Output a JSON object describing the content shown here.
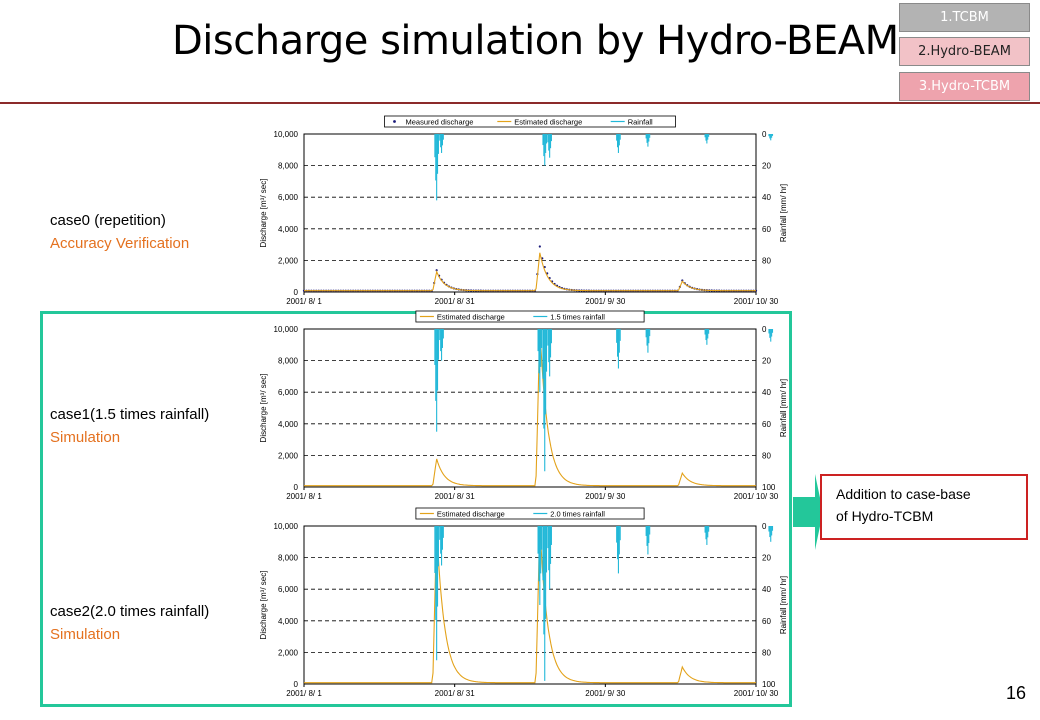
{
  "slide": {
    "title": "Discharge simulation by Hydro-BEAM",
    "page_number": "16",
    "accent_color": "#23c79a",
    "callout_border_color": "#cc2222",
    "callout_text": [
      "Addition to case-base",
      "of Hydro-TCBM"
    ]
  },
  "nav": {
    "items": [
      {
        "label": "1.TCBM",
        "state": "default"
      },
      {
        "label": "2.Hydro-BEAM",
        "state": "active"
      },
      {
        "label": "3.Hydro-TCBM",
        "state": "default"
      }
    ]
  },
  "captions": [
    {
      "line1": "case0 (repetition)",
      "line2": "Accuracy Verification"
    },
    {
      "line1": "case1(1.5 times rainfall)",
      "line2": "Simulation"
    },
    {
      "line1": "case2(2.0 times rainfall)",
      "line2": "Simulation"
    }
  ],
  "chart_data": [
    {
      "type": "line",
      "ylabel": "Discharge [m³/ sec]",
      "y2label": "Rainfall [mm/ hr]",
      "ylim": [
        0,
        10000
      ],
      "y2lim": [
        0,
        100
      ],
      "y2_inverted": true,
      "yticks": [
        "0",
        "2,000",
        "4,000",
        "6,000",
        "8,000",
        "10,000"
      ],
      "y2ticks": [
        "0",
        "20",
        "40",
        "60",
        "80"
      ],
      "xticks": [
        "2001/ 8/ 1",
        "2001/ 8/ 31",
        "2001/ 9/ 30",
        "2001/ 10/ 30"
      ],
      "grid": true,
      "legend_position": "top",
      "series": [
        {
          "name": "Measured discharge",
          "color": "#1a1a7a",
          "style": "markers",
          "peaks": [
            [
              27,
              1300
            ],
            [
              48,
              2800
            ],
            [
              77,
              650
            ]
          ]
        },
        {
          "name": "Estimated discharge",
          "color": "#e3a21a",
          "style": "line",
          "peaks": [
            [
              27,
              1200
            ],
            [
              48,
              2400
            ],
            [
              77,
              600
            ]
          ]
        },
        {
          "name": "Rainfall",
          "color": "#22b8d8",
          "style": "bars",
          "events": [
            [
              27,
              42
            ],
            [
              28,
              12
            ],
            [
              49,
              20
            ],
            [
              50,
              15
            ],
            [
              64,
              12
            ],
            [
              70,
              8
            ],
            [
              82,
              6
            ],
            [
              95,
              4
            ]
          ]
        }
      ]
    },
    {
      "type": "line",
      "ylabel": "Discharge [m³/ sec]",
      "y2label": "Rainfall [mm/ hr]",
      "ylim": [
        0,
        10000
      ],
      "y2lim": [
        0,
        100
      ],
      "y2_inverted": true,
      "yticks": [
        "0",
        "2,000",
        "4,000",
        "6,000",
        "8,000",
        "10,000"
      ],
      "y2ticks": [
        "0",
        "20",
        "40",
        "60",
        "80",
        "100"
      ],
      "xticks": [
        "2001/ 8/ 1",
        "2001/ 8/ 31",
        "2001/ 9/ 30",
        "2001/ 10/ 30"
      ],
      "grid": true,
      "legend_position": "top",
      "series": [
        {
          "name": "Estimated discharge",
          "color": "#e3a21a",
          "style": "line",
          "peaks": [
            [
              27,
              1700
            ],
            [
              48,
              10000
            ],
            [
              77,
              800
            ]
          ]
        },
        {
          "name": "1.5 times rainfall",
          "color": "#22b8d8",
          "style": "bars",
          "events": [
            [
              27,
              65
            ],
            [
              28,
              20
            ],
            [
              48,
              40
            ],
            [
              49,
              90
            ],
            [
              50,
              30
            ],
            [
              64,
              25
            ],
            [
              70,
              15
            ],
            [
              82,
              10
            ],
            [
              95,
              8
            ]
          ]
        }
      ]
    },
    {
      "type": "line",
      "ylabel": "Discharge [m³/ sec]",
      "y2label": "Rainfall [mm/ hr]",
      "ylim": [
        0,
        10000
      ],
      "y2lim": [
        0,
        100
      ],
      "y2_inverted": true,
      "yticks": [
        "0",
        "2,000",
        "4,000",
        "6,000",
        "8,000",
        "10,000"
      ],
      "y2ticks": [
        "0",
        "20",
        "40",
        "60",
        "80",
        "100"
      ],
      "xticks": [
        "2001/ 8/ 1",
        "2001/ 8/ 31",
        "2001/ 9/ 30",
        "2001/ 10/ 30"
      ],
      "grid": true,
      "legend_position": "top",
      "series": [
        {
          "name": "Estimated discharge",
          "color": "#e3a21a",
          "style": "line",
          "peaks": [
            [
              27,
              9800
            ],
            [
              48,
              10000
            ],
            [
              77,
              1000
            ]
          ]
        },
        {
          "name": "2.0 times rainfall",
          "color": "#22b8d8",
          "style": "bars",
          "events": [
            [
              27,
              85
            ],
            [
              28,
              25
            ],
            [
              48,
              50
            ],
            [
              49,
              98
            ],
            [
              50,
              40
            ],
            [
              64,
              30
            ],
            [
              70,
              18
            ],
            [
              82,
              12
            ],
            [
              95,
              10
            ]
          ]
        }
      ]
    }
  ]
}
